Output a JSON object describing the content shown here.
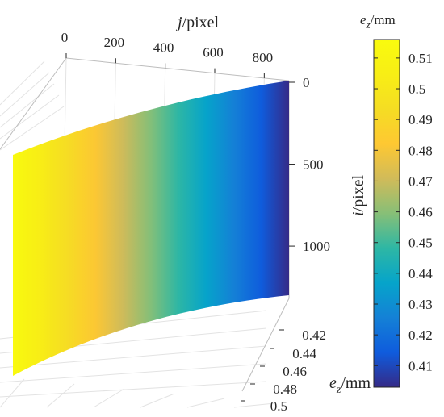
{
  "chart_data": {
    "type": "surface",
    "colormap": "parula",
    "x_axis": {
      "label_var": "j",
      "label_unit": "/pixel",
      "ticks": [
        0,
        200,
        400,
        600,
        800
      ],
      "range": [
        0,
        900
      ]
    },
    "y_axis": {
      "label_var": "i",
      "label_unit": "/pixel",
      "ticks": [
        0,
        500,
        1000
      ],
      "range": [
        0,
        1300
      ]
    },
    "z_axis": {
      "label_var": "e",
      "label_sub": "z",
      "label_unit": "/mm",
      "ticks": [
        "0.42",
        "0.44",
        "0.46",
        "0.48",
        "0.5"
      ],
      "range": [
        0.41,
        0.515
      ]
    },
    "surface": {
      "z_at_j0": 0.515,
      "z_at_j900": 0.403,
      "trend": "e_z decreases as j increases"
    },
    "colorbar": {
      "label_var": "e",
      "label_sub": "z",
      "label_unit": "/mm",
      "ticks": [
        "0.41",
        "0.42",
        "0.43",
        "0.44",
        "0.45",
        "0.46",
        "0.47",
        "0.48",
        "0.49",
        "0.5",
        "0.51"
      ],
      "range": [
        0.403,
        0.516
      ]
    },
    "grid": true
  }
}
